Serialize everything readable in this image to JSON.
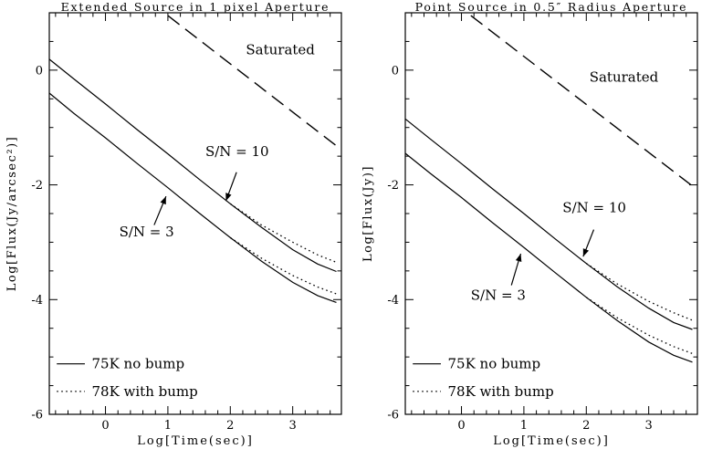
{
  "page": {
    "background": "#ffffff",
    "foreground": "#000000"
  },
  "chart_data": [
    {
      "type": "line",
      "title": "Extended Source in 1 pixel Aperture",
      "xlabel": "Log[Time(sec)]",
      "ylabel": "Log[Flux(Jy/arcsec²)]",
      "xlim": [
        -0.9,
        3.78
      ],
      "ylim": [
        -6,
        1.0
      ],
      "xticks": [
        0,
        1,
        2,
        3
      ],
      "yticks": [
        0,
        -2,
        -4,
        -6
      ],
      "grid": false,
      "legend_position": "lower-left",
      "series": [
        {
          "name": "Saturated",
          "style": "dashed",
          "points": [
            [
              1.0,
              0.95
            ],
            [
              3.7,
              -1.32
            ]
          ]
        },
        {
          "name": "S/N = 10 (75K no bump)",
          "style": "solid",
          "points": [
            [
              -0.9,
              0.19
            ],
            [
              -0.5,
              -0.16
            ],
            [
              0,
              -0.59
            ],
            [
              0.5,
              -1.03
            ],
            [
              1,
              -1.46
            ],
            [
              1.5,
              -1.9
            ],
            [
              2,
              -2.33
            ],
            [
              2.5,
              -2.74
            ],
            [
              3,
              -3.13
            ],
            [
              3.4,
              -3.38
            ],
            [
              3.7,
              -3.51
            ]
          ]
        },
        {
          "name": "S/N = 10 (78K with bump)",
          "style": "dotted",
          "points": [
            [
              2,
              -2.33
            ],
            [
              2.5,
              -2.7
            ],
            [
              3,
              -3.0
            ],
            [
              3.4,
              -3.22
            ],
            [
              3.7,
              -3.35
            ]
          ]
        },
        {
          "name": "S/N = 3 (75K no bump)",
          "style": "solid",
          "points": [
            [
              -0.9,
              -0.4
            ],
            [
              -0.5,
              -0.76
            ],
            [
              0,
              -1.18
            ],
            [
              0.5,
              -1.62
            ],
            [
              1,
              -2.05
            ],
            [
              1.5,
              -2.49
            ],
            [
              2,
              -2.92
            ],
            [
              2.5,
              -3.33
            ],
            [
              3,
              -3.7
            ],
            [
              3.4,
              -3.93
            ],
            [
              3.7,
              -4.05
            ]
          ]
        },
        {
          "name": "S/N = 3 (78K with bump)",
          "style": "dotted",
          "points": [
            [
              2,
              -2.92
            ],
            [
              2.5,
              -3.28
            ],
            [
              3,
              -3.58
            ],
            [
              3.4,
              -3.78
            ],
            [
              3.7,
              -3.9
            ]
          ]
        }
      ],
      "annotations": [
        {
          "text": "Saturated",
          "x": 2.25,
          "y": 0.28
        },
        {
          "text": "S/N = 10",
          "x": 1.6,
          "y": -1.5,
          "arrow": {
            "x1": 2.1,
            "y1": -1.78,
            "x2": 1.93,
            "y2": -2.28
          }
        },
        {
          "text": "S/N = 3",
          "x": 0.22,
          "y": -2.9,
          "arrow": {
            "x1": 0.78,
            "y1": -2.7,
            "x2": 0.97,
            "y2": -2.2
          }
        }
      ],
      "legend": {
        "line_x1": -0.78,
        "line_x2": -0.33,
        "text_x": -0.22,
        "y_start": -5.12,
        "y_step": 0.48,
        "entries": [
          {
            "label": "75K no bump",
            "style": "solid"
          },
          {
            "label": "78K with bump",
            "style": "dotted"
          }
        ]
      }
    },
    {
      "type": "line",
      "title": "Point Source in 0.5″ Radius Aperture",
      "xlabel": "Log[Time(sec)]",
      "ylabel": "Log[Flux(Jy)]",
      "xlim": [
        -0.9,
        3.78
      ],
      "ylim": [
        -6,
        1.0
      ],
      "xticks": [
        0,
        1,
        2,
        3
      ],
      "yticks": [
        0,
        -2,
        -4,
        -6
      ],
      "grid": false,
      "legend_position": "lower-left",
      "series": [
        {
          "name": "Saturated",
          "style": "dashed",
          "points": [
            [
              0.15,
              0.95
            ],
            [
              3.7,
              -2.02
            ]
          ]
        },
        {
          "name": "S/N = 10 (75K no bump)",
          "style": "solid",
          "points": [
            [
              -0.9,
              -0.85
            ],
            [
              -0.5,
              -1.2
            ],
            [
              0,
              -1.63
            ],
            [
              0.5,
              -2.07
            ],
            [
              1,
              -2.5
            ],
            [
              1.5,
              -2.94
            ],
            [
              2,
              -3.37
            ],
            [
              2.5,
              -3.78
            ],
            [
              3,
              -4.15
            ],
            [
              3.4,
              -4.4
            ],
            [
              3.7,
              -4.52
            ]
          ]
        },
        {
          "name": "S/N = 10 (78K with bump)",
          "style": "dotted",
          "points": [
            [
              2,
              -3.37
            ],
            [
              2.5,
              -3.73
            ],
            [
              3,
              -4.03
            ],
            [
              3.4,
              -4.23
            ],
            [
              3.7,
              -4.36
            ]
          ]
        },
        {
          "name": "S/N = 3 (75K no bump)",
          "style": "solid",
          "points": [
            [
              -0.9,
              -1.45
            ],
            [
              -0.5,
              -1.8
            ],
            [
              0,
              -2.22
            ],
            [
              0.5,
              -2.66
            ],
            [
              1,
              -3.09
            ],
            [
              1.5,
              -3.53
            ],
            [
              2,
              -3.96
            ],
            [
              2.5,
              -4.37
            ],
            [
              3,
              -4.74
            ],
            [
              3.4,
              -4.97
            ],
            [
              3.7,
              -5.09
            ]
          ]
        },
        {
          "name": "S/N = 3 (78K with bump)",
          "style": "dotted",
          "points": [
            [
              2,
              -3.96
            ],
            [
              2.5,
              -4.32
            ],
            [
              3,
              -4.62
            ],
            [
              3.4,
              -4.82
            ],
            [
              3.7,
              -4.94
            ]
          ]
        }
      ],
      "annotations": [
        {
          "text": "Saturated",
          "x": 2.05,
          "y": -0.2
        },
        {
          "text": "S/N = 10",
          "x": 1.62,
          "y": -2.48,
          "arrow": {
            "x1": 2.12,
            "y1": -2.78,
            "x2": 1.95,
            "y2": -3.25
          }
        },
        {
          "text": "S/N = 3",
          "x": 0.15,
          "y": -4.0,
          "arrow": {
            "x1": 0.8,
            "y1": -3.75,
            "x2": 0.95,
            "y2": -3.2
          }
        }
      ],
      "legend": {
        "line_x1": -0.78,
        "line_x2": -0.33,
        "text_x": -0.22,
        "y_start": -5.12,
        "y_step": 0.48,
        "entries": [
          {
            "label": "75K no bump",
            "style": "solid"
          },
          {
            "label": "78K with bump",
            "style": "dotted"
          }
        ]
      }
    }
  ]
}
